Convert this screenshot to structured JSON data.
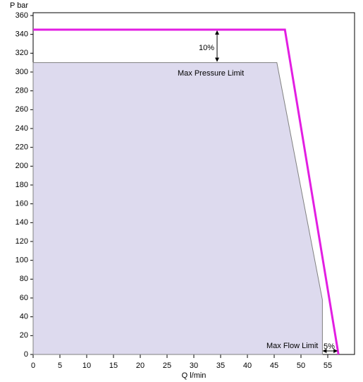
{
  "chart_data": {
    "type": "line",
    "y_label": "P bar",
    "x_label": "Q  l/min",
    "series": [
      {
        "x": [
          0,
          45.5,
          54,
          54,
          0
        ],
        "values": [
          310,
          310,
          58,
          0,
          0
        ],
        "color": "#dddaee",
        "stroke": "#808080",
        "fill": true
      },
      {
        "x": [
          0,
          47,
          57
        ],
        "values": [
          345,
          345,
          0
        ],
        "color": "#e21ee2",
        "fill": false
      }
    ],
    "annotations": [
      "10%",
      "Max Pressure Limit",
      "Max Flow Limit",
      "5%"
    ],
    "xlim": [
      0,
      60
    ],
    "ylim": [
      0,
      363
    ],
    "xticks": [
      0,
      5,
      10,
      15,
      20,
      25,
      30,
      35,
      40,
      45,
      50,
      55
    ],
    "yticks": [
      0,
      20,
      40,
      60,
      80,
      100,
      120,
      140,
      160,
      180,
      200,
      220,
      240,
      260,
      280,
      300,
      320,
      340,
      360
    ]
  }
}
